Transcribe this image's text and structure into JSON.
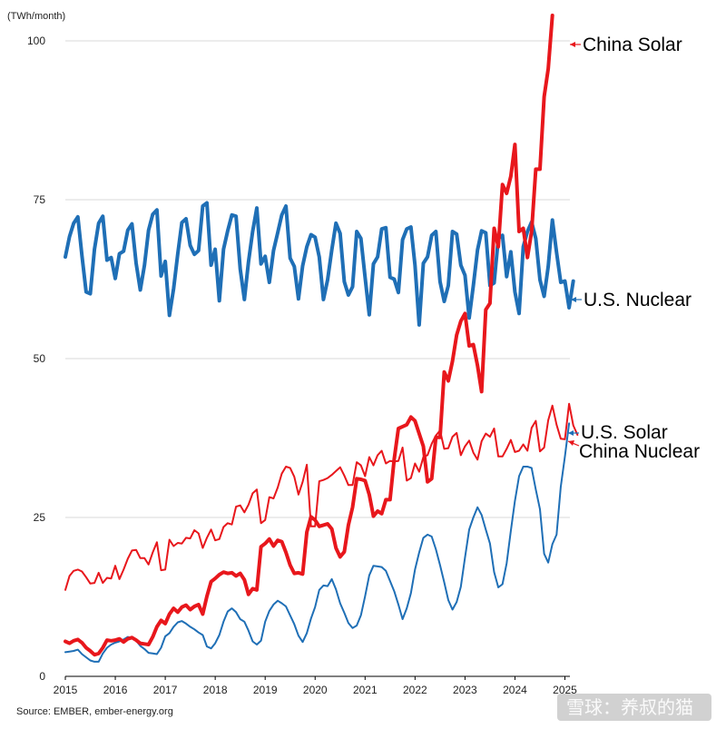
{
  "chart_data": {
    "type": "line",
    "unit_label": "(TWh/month)",
    "source": "Source: EMBER, ember-energy.org",
    "watermark": "雪球：养叔的猫",
    "ylim": [
      0,
      105
    ],
    "y_ticks": [
      0,
      25,
      50,
      75,
      100
    ],
    "x_ticks": [
      "2015",
      "2016",
      "2017",
      "2018",
      "2019",
      "2020",
      "2021",
      "2022",
      "2023",
      "2024",
      "2025"
    ],
    "grid": "horizontal",
    "colors": {
      "china": "#e8171c",
      "us": "#1f6fb6"
    },
    "series": [
      {
        "name": "China Solar",
        "color": "#e8171c",
        "width": 4,
        "values": [
          5.5,
          5.2,
          5.6,
          5.8,
          5.3,
          4.5,
          4.0,
          3.4,
          3.6,
          4.5,
          5.7,
          5.6,
          5.7,
          5.9,
          5.4,
          5.9,
          6.1,
          5.7,
          5.2,
          5.1,
          5.0,
          6.2,
          7.8,
          8.8,
          8.3,
          9.8,
          10.7,
          10.1,
          10.9,
          11.2,
          10.5,
          11.0,
          11.3,
          9.8,
          12.6,
          14.9,
          15.4,
          16.0,
          16.4,
          16.2,
          16.3,
          15.8,
          16.2,
          15.2,
          12.9,
          13.8,
          13.6,
          20.4,
          20.9,
          21.6,
          20.5,
          21.4,
          21.2,
          19.5,
          17.5,
          16.2,
          16.3,
          16.1,
          22.7,
          25.1,
          24.6,
          23.6,
          23.8,
          24.0,
          23.2,
          20.2,
          18.8,
          19.6,
          23.8,
          26.6,
          31.1,
          31.0,
          30.8,
          28.6,
          25.2,
          26.0,
          25.6,
          27.8,
          27.8,
          34.2,
          39.0,
          39.3,
          39.6,
          40.8,
          40.2,
          38.2,
          36.2,
          30.6,
          31.1,
          37.6,
          37.6,
          47.9,
          46.5,
          49.6,
          53.7,
          55.9,
          57.1,
          52.0,
          52.2,
          48.9,
          44.8,
          57.7,
          58.7,
          70.5,
          67.6,
          77.4,
          76.0,
          78.7,
          83.7,
          70.0,
          70.5,
          65.9,
          70.0,
          79.8,
          79.8,
          91.2,
          95.6,
          104.0
        ]
      },
      {
        "name": "U.S. Nuclear",
        "color": "#1f6fb6",
        "width": 4,
        "values": [
          66.0,
          69.2,
          71.3,
          72.3,
          66.2,
          60.5,
          60.2,
          67.2,
          71.3,
          72.4,
          65.5,
          65.9,
          62.6,
          66.5,
          66.9,
          70.2,
          71.2,
          65.0,
          60.8,
          64.7,
          70.2,
          72.7,
          73.4,
          63.0,
          65.3,
          56.8,
          61.0,
          66.5,
          71.4,
          72.0,
          67.8,
          66.4,
          67.0,
          74.0,
          74.5,
          64.7,
          67.2,
          59.1,
          67.2,
          70.1,
          72.6,
          72.4,
          64.1,
          59.3,
          65.2,
          70.0,
          73.7,
          64.9,
          66.1,
          62.0,
          67.0,
          69.8,
          72.6,
          74.0,
          65.8,
          64.5,
          59.4,
          64.6,
          67.6,
          69.5,
          69.1,
          66.0,
          59.3,
          62.4,
          67.1,
          71.3,
          69.7,
          62.1,
          60.0,
          61.3,
          70.0,
          68.9,
          62.8,
          56.9,
          64.9,
          66.0,
          70.4,
          70.6,
          62.8,
          62.5,
          60.4,
          68.7,
          70.4,
          70.7,
          64.7,
          55.3,
          65.0,
          66.0,
          69.4,
          70.0,
          62.1,
          59.0,
          61.5,
          70.0,
          69.6,
          64.7,
          63.1,
          56.4,
          61.5,
          67.1,
          70.1,
          69.8,
          61.5,
          61.9,
          68.9,
          69.4,
          62.9,
          66.8,
          60.5,
          57.1,
          67.6,
          70.0,
          71.5,
          68.9,
          62.4,
          59.8,
          64.5,
          71.8,
          66.7,
          62.0,
          62.2,
          58.0,
          62.2
        ]
      },
      {
        "name": "China Nuclear",
        "color": "#e8171c",
        "width": 2,
        "values": [
          13.6,
          15.8,
          16.6,
          16.8,
          16.5,
          15.6,
          14.6,
          14.7,
          16.3,
          14.7,
          15.5,
          15.4,
          17.4,
          15.3,
          16.8,
          18.5,
          19.8,
          19.9,
          18.6,
          18.6,
          17.6,
          19.5,
          21.1,
          16.7,
          16.8,
          21.5,
          20.5,
          21.0,
          20.9,
          21.8,
          21.7,
          23.0,
          22.5,
          20.2,
          21.8,
          23.1,
          21.4,
          21.6,
          23.5,
          24.1,
          23.9,
          26.7,
          26.9,
          25.8,
          27.0,
          28.8,
          29.4,
          24.1,
          24.6,
          28.2,
          28.0,
          29.7,
          31.9,
          33.0,
          32.8,
          31.4,
          28.6,
          30.6,
          33.3,
          23.6,
          23.6,
          30.7,
          30.9,
          31.2,
          31.7,
          32.3,
          32.9,
          31.6,
          30.1,
          30.1,
          33.7,
          33.2,
          31.5,
          34.5,
          33.2,
          34.8,
          35.5,
          33.5,
          33.9,
          33.8,
          33.9,
          36.0,
          30.8,
          31.2,
          33.5,
          32.2,
          34.5,
          34.8,
          36.6,
          37.9,
          38.7,
          35.8,
          35.9,
          37.7,
          38.3,
          34.8,
          36.2,
          37.1,
          35.2,
          34.1,
          37.0,
          38.2,
          37.7,
          39.0,
          34.6,
          34.6,
          35.8,
          37.2,
          35.3,
          35.5,
          36.5,
          35.5,
          39.1,
          40.2,
          35.4,
          36.0,
          40.3,
          42.6,
          39.6,
          37.4,
          37.3,
          42.9,
          39.5,
          38.0
        ]
      },
      {
        "name": "U.S. Solar",
        "color": "#1f6fb6",
        "width": 2,
        "values": [
          3.8,
          3.9,
          4.0,
          4.2,
          3.5,
          3.0,
          2.5,
          2.3,
          2.3,
          3.6,
          4.5,
          5.0,
          5.3,
          5.5,
          5.8,
          6.2,
          6.0,
          5.6,
          4.8,
          4.3,
          3.7,
          3.6,
          3.5,
          4.5,
          6.3,
          6.8,
          7.8,
          8.5,
          8.7,
          8.3,
          7.8,
          7.4,
          6.9,
          6.5,
          4.7,
          4.4,
          5.2,
          6.5,
          8.6,
          10.2,
          10.7,
          10.1,
          9.0,
          8.6,
          7.2,
          5.5,
          5.0,
          5.6,
          8.6,
          10.3,
          11.3,
          11.9,
          11.5,
          11.0,
          9.6,
          8.2,
          6.4,
          5.4,
          6.8,
          9.1,
          10.9,
          13.6,
          14.3,
          14.2,
          15.3,
          13.7,
          11.5,
          10.0,
          8.4,
          7.6,
          8.0,
          9.6,
          12.6,
          15.9,
          17.4,
          17.3,
          17.2,
          16.6,
          15.0,
          13.4,
          11.3,
          9.0,
          10.7,
          13.1,
          16.8,
          19.5,
          21.8,
          22.3,
          22.0,
          20.0,
          17.5,
          14.8,
          12.0,
          10.5,
          11.7,
          14.1,
          18.7,
          23.1,
          25.0,
          26.6,
          25.4,
          23.1,
          20.9,
          16.4,
          14.0,
          14.5,
          17.8,
          22.9,
          27.6,
          31.5,
          33.0,
          33.0,
          32.8,
          29.4,
          26.3,
          19.3,
          17.9,
          20.8,
          22.3,
          29.8,
          34.6,
          39.8
        ]
      }
    ],
    "series_labels": [
      "China Solar",
      "U.S. Nuclear",
      "U.S. Solar",
      "China Nuclear"
    ]
  }
}
